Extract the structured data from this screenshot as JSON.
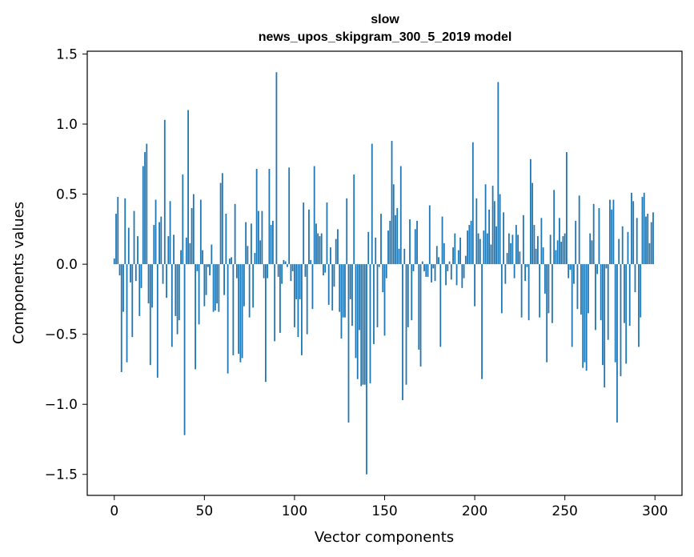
{
  "chart_data": {
    "type": "bar",
    "title_line1": "slow",
    "title_line2": "news_upos_skipgram_300_5_2019 model",
    "xlabel": "Vector components",
    "ylabel": "Components values",
    "xlim": [
      -15,
      315
    ],
    "ylim": [
      -1.65,
      1.52
    ],
    "xticks": [
      0,
      50,
      100,
      150,
      200,
      250,
      300
    ],
    "yticks": [
      1.5,
      1.0,
      0.5,
      0.0,
      -0.5,
      -1.0,
      -1.5
    ],
    "ytick_labels": [
      "1.5",
      "1.0",
      "0.5",
      "0.0",
      "−0.5",
      "−1.0",
      "−1.5"
    ],
    "bar_color": "#1f77b4",
    "values": [
      0.04,
      0.36,
      0.48,
      -0.08,
      -0.77,
      -0.34,
      0.47,
      -0.7,
      0.26,
      -0.13,
      -0.52,
      0.38,
      -0.12,
      0.2,
      -0.37,
      -0.17,
      0.7,
      0.8,
      0.86,
      -0.28,
      -0.72,
      -0.31,
      0.28,
      0.46,
      -0.81,
      0.3,
      0.34,
      -0.14,
      1.03,
      -0.24,
      0.2,
      0.45,
      -0.59,
      0.21,
      -0.37,
      -0.5,
      -0.4,
      0.1,
      0.64,
      -1.22,
      0.19,
      1.1,
      0.15,
      0.4,
      0.5,
      -0.75,
      -0.05,
      -0.43,
      0.46,
      0.1,
      -0.3,
      -0.22,
      -0.02,
      -0.08,
      0.14,
      -0.34,
      -0.33,
      -0.28,
      -0.34,
      0.58,
      0.65,
      -0.22,
      0.36,
      -0.78,
      0.04,
      0.05,
      -0.65,
      0.43,
      -0.1,
      -0.64,
      -0.7,
      -0.67,
      -0.3,
      0.3,
      0.13,
      -0.38,
      0.29,
      -0.31,
      0.08,
      0.68,
      0.38,
      0.17,
      0.38,
      -0.1,
      -0.84,
      -0.1,
      0.68,
      0.28,
      0.31,
      -0.55,
      1.37,
      -0.09,
      -0.49,
      -0.14,
      0.03,
      0.02,
      -0.02,
      0.69,
      -0.12,
      -0.05,
      -0.45,
      -0.25,
      -0.52,
      -0.25,
      -0.65,
      0.44,
      -0.09,
      -0.5,
      0.39,
      0.03,
      -0.32,
      0.7,
      0.29,
      0.22,
      0.2,
      0.22,
      -0.08,
      -0.06,
      0.44,
      -0.29,
      0.12,
      -0.33,
      -0.16,
      0.18,
      0.25,
      -0.34,
      -0.53,
      -0.38,
      -0.38,
      0.47,
      -1.13,
      -0.25,
      -0.44,
      0.64,
      -0.67,
      -0.82,
      -0.47,
      -0.87,
      -0.86,
      -0.86,
      -1.5,
      0.23,
      -0.85,
      0.86,
      -0.57,
      0.19,
      -0.45,
      -0.02,
      0.36,
      -0.2,
      -0.51,
      -0.1,
      0.24,
      0.31,
      0.88,
      0.57,
      0.35,
      0.4,
      0.11,
      0.7,
      -0.97,
      0.11,
      -0.86,
      -0.45,
      0.32,
      -0.4,
      -0.05,
      0.25,
      0.31,
      -0.61,
      -0.73,
      0.02,
      -0.05,
      -0.09,
      -0.09,
      0.42,
      -0.13,
      -0.03,
      -0.12,
      0.13,
      0.05,
      -0.59,
      0.34,
      0.15,
      -0.15,
      -0.05,
      0.02,
      -0.11,
      0.12,
      0.22,
      -0.15,
      0.1,
      0.19,
      -0.17,
      -0.1,
      0.06,
      0.24,
      0.28,
      0.31,
      0.87,
      -0.3,
      0.47,
      0.22,
      0.18,
      -0.82,
      0.24,
      0.57,
      0.22,
      0.39,
      0.14,
      0.56,
      0.45,
      0.27,
      1.3,
      0.5,
      -0.35,
      0.37,
      -0.14,
      0.08,
      0.22,
      0.15,
      0.21,
      -0.1,
      0.28,
      0.21,
      0.09,
      -0.38,
      0.35,
      -0.12,
      -0.02,
      -0.4,
      0.75,
      0.58,
      0.28,
      0.11,
      0.2,
      -0.38,
      0.33,
      0.12,
      -0.21,
      -0.7,
      -0.35,
      0.21,
      -0.42,
      0.53,
      0.1,
      0.17,
      0.33,
      0.16,
      0.2,
      0.22,
      0.8,
      -0.1,
      -0.04,
      -0.59,
      -0.14,
      0.31,
      -0.32,
      0.49,
      -0.36,
      -0.74,
      -0.7,
      -0.76,
      -0.35,
      0.22,
      0.17,
      0.43,
      -0.47,
      -0.07,
      0.4,
      -0.4,
      -0.72,
      -0.88,
      -0.03,
      -0.54,
      0.46,
      0.39,
      0.46,
      -0.7,
      -1.13,
      0.18,
      -0.8,
      0.27,
      -0.42,
      -0.71,
      0.23,
      -0.44,
      0.51,
      0.45,
      -0.2,
      0.33,
      -0.59,
      -0.38,
      0.48,
      0.51,
      0.34,
      0.36,
      0.15,
      0.3,
      0.37
    ]
  }
}
